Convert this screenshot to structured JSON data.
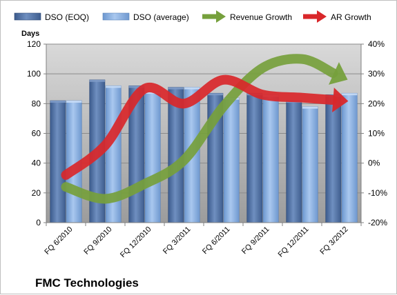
{
  "chart_data": {
    "type": "bar",
    "title": "",
    "company": "FMC Technologies",
    "categories": [
      "FQ 6/2010",
      "FQ 9/2010",
      "FQ 12/2010",
      "FQ 3/2011",
      "FQ 6/2011",
      "FQ 9/2011",
      "FQ 12/2011",
      "FQ 3/2012"
    ],
    "ylabel": "Days",
    "ylim": [
      0,
      120
    ],
    "yticks": [
      "0",
      "20",
      "40",
      "60",
      "80",
      "100",
      "120"
    ],
    "y2lim": [
      -20,
      40
    ],
    "y2ticks": [
      "-20%",
      "-10%",
      "0%",
      "10%",
      "20%",
      "30%",
      "40%"
    ],
    "grid": true,
    "legend_position": "top",
    "series": [
      {
        "name": "DSO (EOQ)",
        "kind": "bar",
        "axis": "left",
        "color": "#4f6fa0",
        "values": [
          82,
          96,
          92,
          91,
          87,
          87,
          82,
          86
        ]
      },
      {
        "name": "DSO (average)",
        "kind": "bar",
        "axis": "left",
        "color": "#87aee0",
        "values": [
          82,
          92,
          88,
          91,
          84,
          86,
          78,
          87
        ]
      },
      {
        "name": "Revenue Growth",
        "kind": "arrow-line",
        "axis": "right",
        "color": "#76a03c",
        "values": [
          -8,
          -12,
          -7,
          1,
          19,
          32,
          35,
          29
        ]
      },
      {
        "name": "AR Growth",
        "kind": "arrow-line",
        "axis": "right",
        "color": "#d9272a",
        "values": [
          -4,
          6,
          25,
          20,
          28,
          23,
          22,
          21
        ]
      }
    ]
  }
}
